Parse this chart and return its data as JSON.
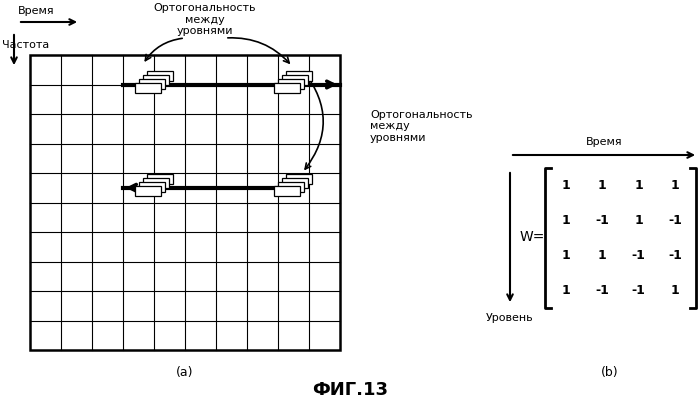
{
  "title": "ФИГ.13",
  "fig_width": 7.0,
  "fig_height": 4.01,
  "bg_color": "#ffffff",
  "grid_rows": 10,
  "grid_cols": 10,
  "label_time": "Время",
  "label_freq": "Частота",
  "label_orth_top": "Ортогональность\nмежду\nуровнями",
  "label_orth_right": "Ортогональность\nмежду\nуровнями",
  "label_time_b": "Время",
  "label_level_b": "Уровень",
  "label_W": "W=",
  "matrix": [
    [
      1,
      1,
      1,
      1
    ],
    [
      1,
      -1,
      1,
      -1
    ],
    [
      1,
      1,
      -1,
      -1
    ],
    [
      1,
      -1,
      -1,
      1
    ]
  ],
  "sub_a": "(a)",
  "sub_b": "(b)"
}
